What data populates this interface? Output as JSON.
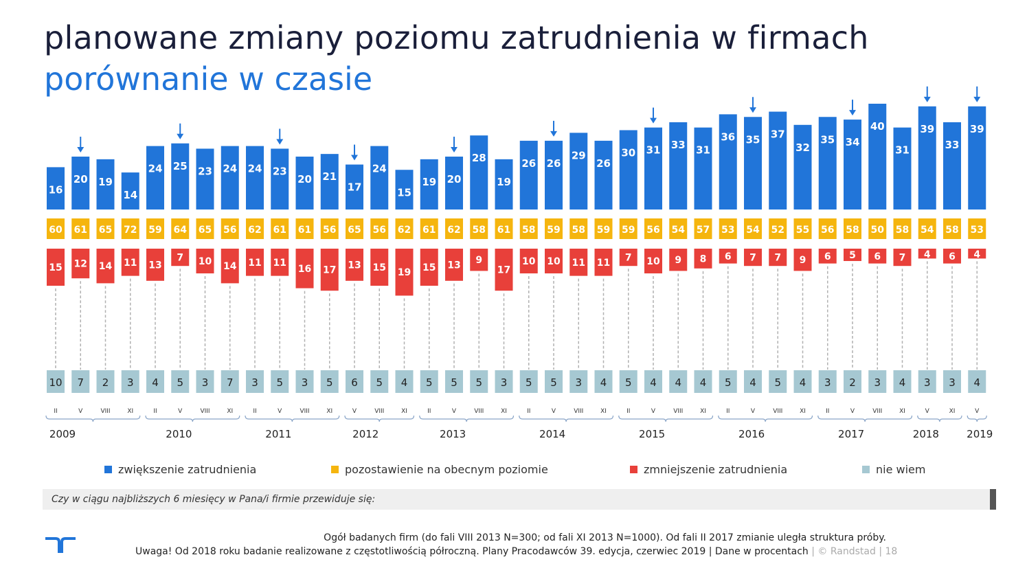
{
  "header": {
    "title": "planowane zmiany poziomu zatrudnienia w firmach",
    "subtitle": "porównanie w czasie"
  },
  "colors": {
    "increase": "#2175d9",
    "same": "#f5b50e",
    "decrease": "#e8403a",
    "dontknow": "#a6c8d2"
  },
  "chart_data": {
    "type": "bar",
    "categories": [
      "II",
      "V",
      "VIII",
      "XI",
      "II",
      "V",
      "VIII",
      "XI",
      "II",
      "V",
      "VIII",
      "XI",
      "V",
      "VIII",
      "XI",
      "II",
      "V",
      "VIII",
      "XI",
      "II",
      "V",
      "VIII",
      "XI",
      "II",
      "V",
      "VIII",
      "XI",
      "II",
      "V",
      "VIII",
      "XI",
      "II",
      "V",
      "VIII",
      "XI",
      "V",
      "XI",
      "V"
    ],
    "series": [
      {
        "name": "zwiększenie zatrudnienia",
        "values": [
          16,
          20,
          19,
          14,
          24,
          25,
          23,
          24,
          24,
          23,
          20,
          21,
          17,
          24,
          15,
          19,
          20,
          28,
          19,
          26,
          26,
          29,
          26,
          30,
          31,
          33,
          31,
          36,
          35,
          37,
          32,
          35,
          34,
          40,
          31,
          39,
          33,
          39
        ]
      },
      {
        "name": "pozostawienie na obecnym poziomie",
        "values": [
          60,
          61,
          65,
          72,
          59,
          64,
          65,
          56,
          62,
          61,
          61,
          56,
          65,
          56,
          62,
          61,
          62,
          58,
          61,
          58,
          59,
          58,
          59,
          59,
          56,
          54,
          57,
          53,
          54,
          52,
          55,
          56,
          58,
          50,
          58,
          54,
          58,
          53
        ]
      },
      {
        "name": "zmniejszenie zatrudnienia",
        "values": [
          15,
          12,
          14,
          11,
          13,
          7,
          10,
          14,
          11,
          11,
          16,
          17,
          13,
          15,
          19,
          15,
          13,
          9,
          17,
          10,
          10,
          11,
          11,
          7,
          10,
          9,
          8,
          6,
          7,
          7,
          9,
          6,
          5,
          6,
          7,
          4,
          6,
          4
        ]
      },
      {
        "name": "nie wiem",
        "values": [
          10,
          7,
          2,
          3,
          4,
          5,
          3,
          7,
          3,
          5,
          3,
          5,
          6,
          5,
          4,
          5,
          5,
          5,
          3,
          5,
          5,
          3,
          4,
          5,
          4,
          4,
          4,
          5,
          4,
          5,
          4,
          3,
          2,
          3,
          4,
          3,
          3,
          4
        ]
      }
    ],
    "arrow_markers": [
      1,
      5,
      9,
      12,
      16,
      20,
      24,
      28,
      32,
      35,
      37
    ],
    "year_groups": [
      {
        "label": "2009",
        "start": 0,
        "end": 3
      },
      {
        "label": "2010",
        "start": 4,
        "end": 7
      },
      {
        "label": "2011",
        "start": 8,
        "end": 11
      },
      {
        "label": "2012",
        "start": 12,
        "end": 14
      },
      {
        "label": "2013",
        "start": 15,
        "end": 18
      },
      {
        "label": "2014",
        "start": 19,
        "end": 22
      },
      {
        "label": "2015",
        "start": 23,
        "end": 26
      },
      {
        "label": "2016",
        "start": 27,
        "end": 30
      },
      {
        "label": "2017",
        "start": 31,
        "end": 34
      },
      {
        "label": "2018",
        "start": 35,
        "end": 36
      },
      {
        "label": "2019",
        "start": 37,
        "end": 37
      }
    ]
  },
  "legend": [
    {
      "label": "zwiększenie zatrudnienia",
      "color": "#2175d9"
    },
    {
      "label": "pozostawienie na obecnym poziomie",
      "color": "#f5b50e"
    },
    {
      "label": "zmniejszenie zatrudnienia",
      "color": "#e8403a"
    },
    {
      "label": "nie wiem",
      "color": "#a6c8d2"
    }
  ],
  "question": "Czy w ciągu najbliższych 6 miesięcy w Pana/i firmie przewiduje się:",
  "footer": {
    "line1": "Ogół badanych firm (do fali VIII 2013 N=300; od fali XI 2013 N=1000).  Od fali II 2017 zmianie uległa struktura próby.",
    "line2": "Uwaga! Od 2018 roku badanie realizowane z częstotliwością półroczną. Plany Pracodawców 39. edycja, czerwiec 2019  | Dane w procentach",
    "brand": "|  © Randstad  |  18"
  }
}
